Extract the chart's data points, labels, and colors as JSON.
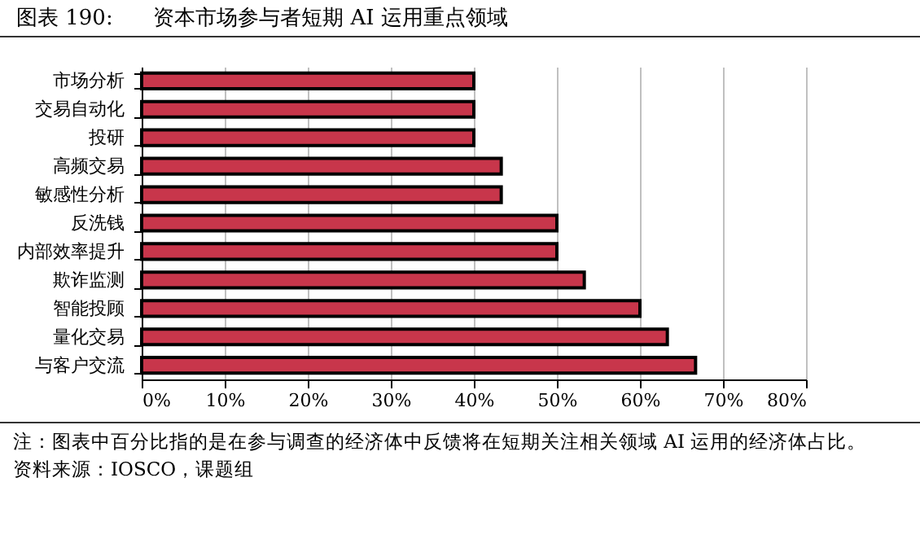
{
  "chart_data": {
    "type": "bar",
    "orientation": "horizontal",
    "title": "图表 190:      资本市场参与者短期 AI 运用重点领域",
    "categories": [
      "市场分析",
      "交易自动化",
      "投研",
      "高频交易",
      "敏感性分析",
      "反洗钱",
      "内部效率提升",
      "欺诈监测",
      "智能投顾",
      "量化交易",
      "与客户交流"
    ],
    "values": [
      40,
      40,
      40,
      43.3,
      43.3,
      50,
      50,
      53.3,
      60,
      63.3,
      66.7
    ],
    "color": "#c8364b",
    "xlim": [
      0,
      80
    ],
    "xticks": [
      {
        "value": 0,
        "label": "0%"
      },
      {
        "value": 10,
        "label": "10%"
      },
      {
        "value": 20,
        "label": "20%"
      },
      {
        "value": 30,
        "label": "30%"
      },
      {
        "value": 40,
        "label": "40%"
      },
      {
        "value": 50,
        "label": "50%"
      },
      {
        "value": 60,
        "label": "60%"
      },
      {
        "value": 70,
        "label": "70%"
      },
      {
        "value": 80,
        "label": "80%"
      }
    ],
    "grid": "x",
    "annotations": [
      "注：图表中百分比指的是在参与调查的经济体中反馈将在短期关注相关领域 AI 运用的经济体占比。",
      "资料来源：IOSCO，课题组"
    ]
  }
}
